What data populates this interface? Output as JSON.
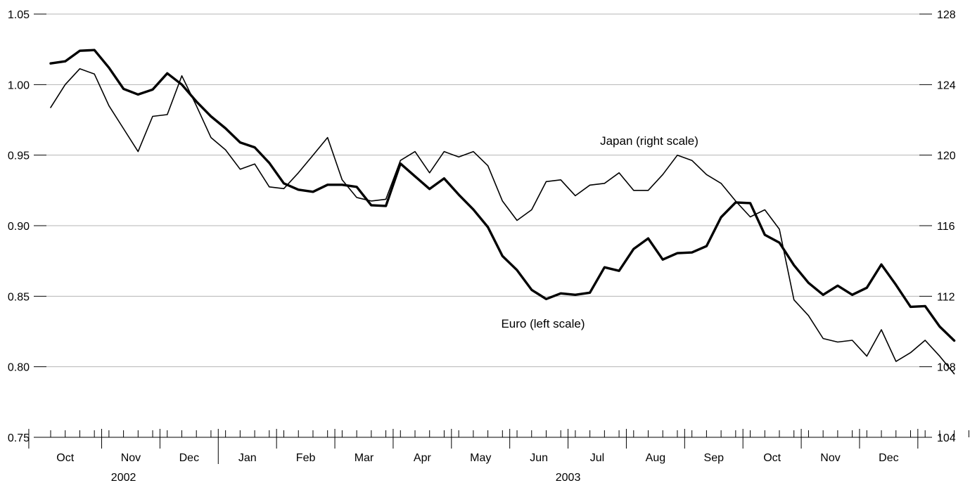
{
  "chart_data": {
    "type": "line",
    "title": "",
    "grid": "horizontal",
    "y_left": {
      "ylim": [
        0.75,
        1.05
      ],
      "ticks": [
        "0.75",
        "0.80",
        "0.85",
        "0.90",
        "0.95",
        "1.00",
        "1.05"
      ]
    },
    "y_right": {
      "ylim": [
        104,
        128
      ],
      "ticks": [
        "104",
        "108",
        "112",
        "116",
        "120",
        "124",
        "128"
      ]
    },
    "x_axis": {
      "week_count": 65,
      "months": [
        "Oct",
        "Nov",
        "Dec",
        "Jan",
        "Feb",
        "Mar",
        "Apr",
        "May",
        "Jun",
        "Jul",
        "Aug",
        "Sep",
        "Oct",
        "Nov",
        "Dec"
      ],
      "month_start_weeks": [
        -1.5,
        3.5,
        7.5,
        11.5,
        15.5,
        19.5,
        23.5,
        27.5,
        31.5,
        35.5,
        39.5,
        43.5,
        47.5,
        51.5,
        55.5,
        59.5
      ],
      "years": [
        {
          "label": "2002",
          "from_week": -1.5,
          "to_week": 11.5
        },
        {
          "label": "2003",
          "from_week": 11.5,
          "to_week": 59.5
        }
      ]
    },
    "series": [
      {
        "name": "Euro (left scale)",
        "scale": "left",
        "values": [
          1.015,
          1.0165,
          1.024,
          1.0245,
          1.012,
          0.997,
          0.993,
          0.9965,
          1.008,
          1.0,
          0.988,
          0.9775,
          0.969,
          0.959,
          0.9555,
          0.9445,
          0.93,
          0.9255,
          0.924,
          0.929,
          0.929,
          0.9275,
          0.9145,
          0.914,
          0.944,
          0.935,
          0.926,
          0.9335,
          0.922,
          0.9115,
          0.899,
          0.8785,
          0.8685,
          0.8545,
          0.848,
          0.852,
          0.851,
          0.8525,
          0.8705,
          0.868,
          0.8835,
          0.891,
          0.876,
          0.8805,
          0.881,
          0.8855,
          0.906,
          0.9165,
          0.916,
          0.8935,
          0.888,
          0.872,
          0.8595,
          0.851,
          0.8575,
          0.851,
          0.856,
          0.8725,
          0.858,
          0.8425,
          0.843,
          0.8285,
          0.8185
        ]
      },
      {
        "name": "Japan (right scale)",
        "scale": "right",
        "values": [
          122.7,
          124.0,
          124.9,
          124.6,
          122.8,
          121.5,
          120.2,
          122.2,
          122.3,
          124.5,
          122.8,
          121.0,
          120.3,
          119.2,
          119.5,
          118.2,
          118.1,
          119.0,
          120.0,
          121.0,
          118.6,
          117.6,
          117.4,
          117.5,
          119.7,
          120.2,
          119.0,
          120.2,
          119.9,
          120.2,
          119.4,
          117.4,
          116.3,
          116.9,
          118.5,
          118.6,
          117.7,
          118.3,
          118.4,
          119.0,
          118.0,
          118.0,
          118.9,
          120.0,
          119.7,
          118.9,
          118.4,
          117.4,
          116.5,
          116.9,
          115.8,
          111.8,
          110.9,
          109.6,
          109.4,
          109.5,
          108.6,
          110.1,
          108.3,
          108.8,
          109.5,
          108.6,
          107.6
        ]
      }
    ],
    "annotations": [
      {
        "text": "Japan (right scale)",
        "series": "Japan (right scale)"
      },
      {
        "text": "Euro (left scale)",
        "series": "Euro (left scale)"
      }
    ]
  }
}
